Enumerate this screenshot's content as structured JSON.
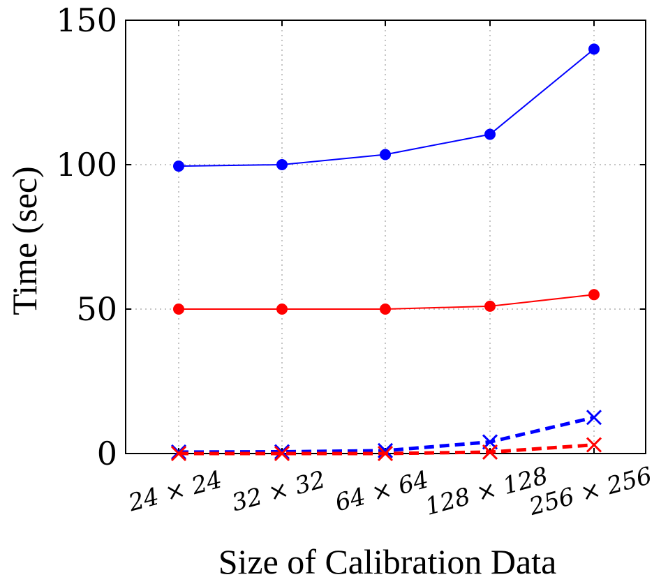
{
  "chart_data": {
    "type": "line",
    "xlabel": "Size of Calibration Data",
    "ylabel": "Time (sec)",
    "categories": [
      "24 × 24",
      "32 × 32",
      "64 × 64",
      "128 × 128",
      "256 × 256"
    ],
    "ylim": [
      0,
      150
    ],
    "yticks": [
      0,
      50,
      100,
      150
    ],
    "grid": true,
    "legend": "none",
    "series": [
      {
        "values": [
          99.5,
          100,
          103.5,
          110.5,
          140
        ],
        "color": "#0000ff",
        "line": "solid",
        "marker": "circle"
      },
      {
        "values": [
          50,
          50,
          50,
          51,
          55
        ],
        "color": "#ff0000",
        "line": "solid",
        "marker": "circle"
      },
      {
        "values": [
          0.5,
          0.6,
          1,
          4,
          12.5
        ],
        "color": "#0000ff",
        "line": "dashed",
        "marker": "cross"
      },
      {
        "values": [
          0,
          0,
          0,
          0.5,
          3
        ],
        "color": "#ff0000",
        "line": "dashed",
        "marker": "cross"
      }
    ]
  }
}
